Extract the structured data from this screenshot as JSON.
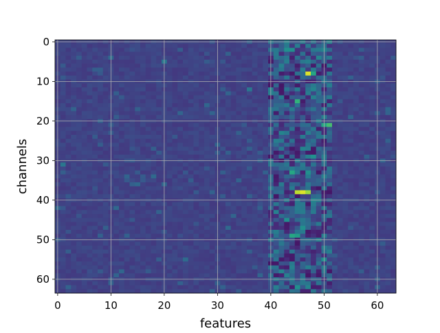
{
  "chart_data": {
    "type": "heatmap",
    "title": "",
    "xlabel": "features",
    "ylabel": "channels",
    "x_ticks": [
      0,
      10,
      20,
      30,
      40,
      50,
      60
    ],
    "y_ticks": [
      0,
      10,
      20,
      30,
      40,
      50,
      60
    ],
    "x_tick_labels": [
      "0",
      "10",
      "20",
      "30",
      "40",
      "50",
      "60"
    ],
    "y_tick_labels": [
      "0",
      "10",
      "20",
      "30",
      "40",
      "50",
      "60"
    ],
    "xlim": [
      -0.5,
      63.5
    ],
    "ylim": [
      63.5,
      -0.5
    ],
    "n_features": 64,
    "n_channels": 64,
    "colormap": "viridis",
    "grid": true,
    "grid_color": "#b0b0b0",
    "value_range": [
      0,
      1
    ],
    "background_level": 0.2,
    "active_feature_band": [
      40,
      51
    ],
    "peaks": [
      {
        "feature": 47,
        "channel": 8,
        "value": 0.95
      },
      {
        "feature": 48,
        "channel": 8,
        "value": 0.6
      },
      {
        "feature": 45,
        "channel": 38,
        "value": 0.9
      },
      {
        "feature": 46,
        "channel": 38,
        "value": 0.95
      },
      {
        "feature": 47,
        "channel": 38,
        "value": 0.85
      },
      {
        "feature": 51,
        "channel": 21,
        "value": 0.7
      },
      {
        "feature": 50,
        "channel": 21,
        "value": 0.6
      },
      {
        "feature": 45,
        "channel": 15,
        "value": 0.65
      },
      {
        "feature": 44,
        "channel": 33,
        "value": 0.6
      },
      {
        "feature": 47,
        "channel": 33,
        "value": 0.5
      },
      {
        "feature": 44,
        "channel": 49,
        "value": 0.6
      },
      {
        "feature": 45,
        "channel": 49,
        "value": 0.55
      },
      {
        "feature": 46,
        "channel": 47,
        "value": 0.5
      },
      {
        "feature": 43,
        "channel": 2,
        "value": 0.5
      },
      {
        "feature": 44,
        "channel": 2,
        "value": 0.5
      },
      {
        "feature": 50,
        "channel": 55,
        "value": 0.5
      },
      {
        "feature": 45,
        "channel": 62,
        "value": 0.5
      },
      {
        "feature": 47,
        "channel": 62,
        "value": 0.45
      },
      {
        "feature": 48,
        "channel": 29,
        "value": 0.5
      },
      {
        "feature": 43,
        "channel": 45,
        "value": 0.5
      },
      {
        "feature": 49,
        "channel": 4,
        "value": 0.45
      },
      {
        "feature": 48,
        "channel": 12,
        "value": 0.45
      },
      {
        "feature": 42,
        "channel": 23,
        "value": 0.45
      },
      {
        "feature": 46,
        "channel": 27,
        "value": 0.45
      },
      {
        "feature": 42,
        "channel": 58,
        "value": 0.45
      },
      {
        "feature": 48,
        "channel": 40,
        "value": 0.45
      },
      {
        "feature": 50,
        "channel": 2,
        "value": 0.45
      },
      {
        "feature": 20,
        "channel": 5,
        "value": 0.4
      },
      {
        "feature": 36,
        "channel": 12,
        "value": 0.4
      },
      {
        "feature": 1,
        "channel": 31,
        "value": 0.4
      },
      {
        "feature": 24,
        "channel": 55,
        "value": 0.35
      }
    ]
  }
}
